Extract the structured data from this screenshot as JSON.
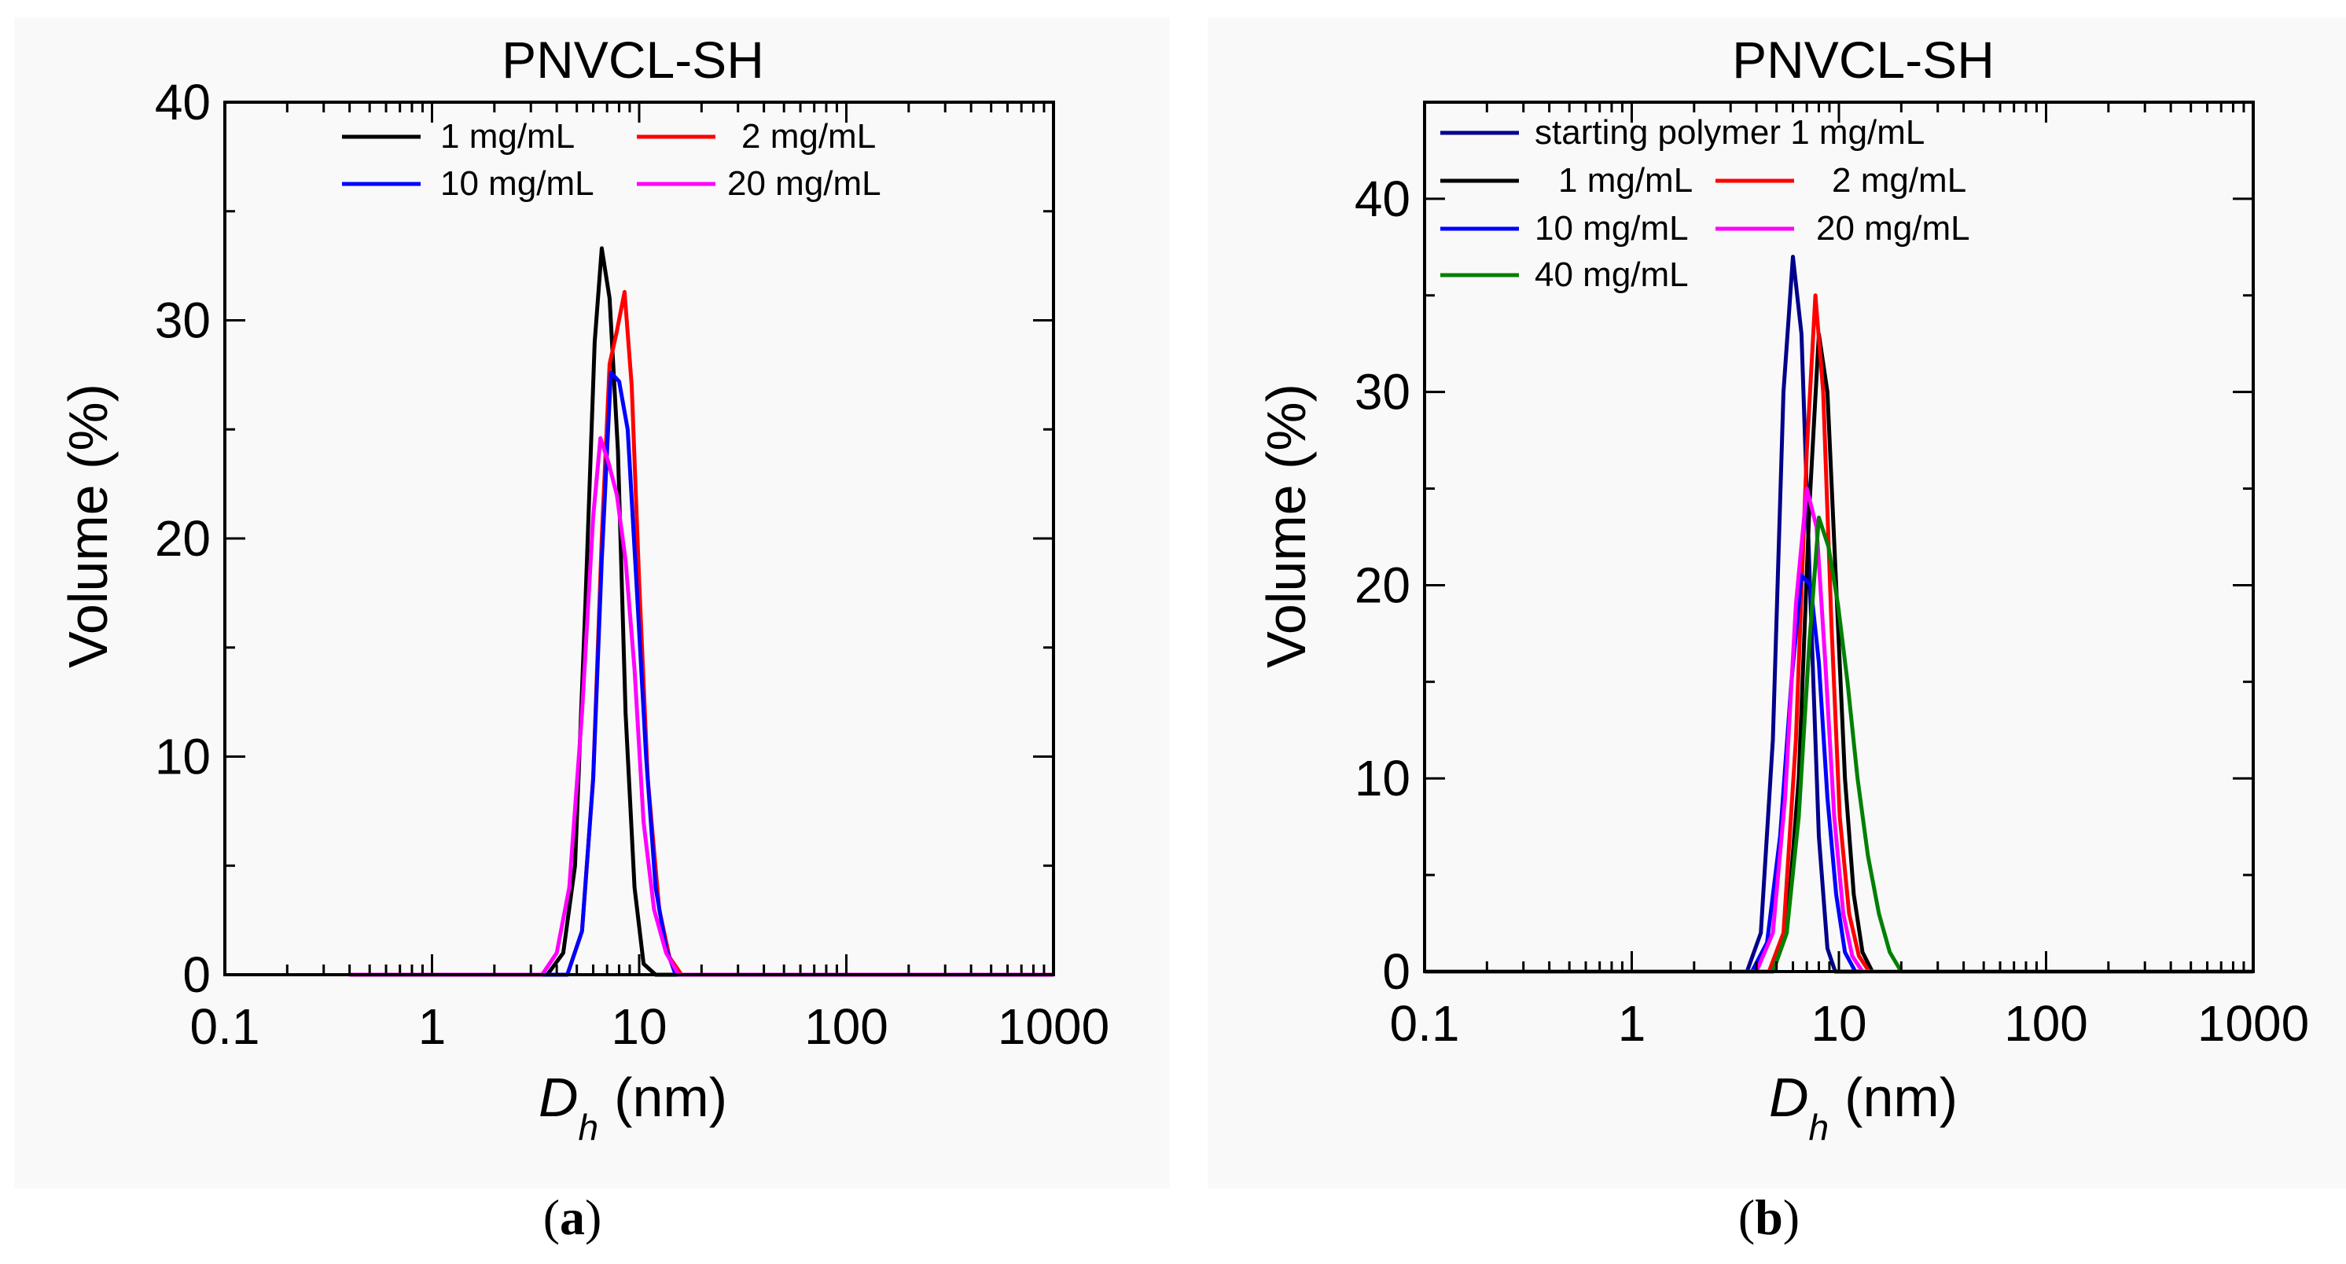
{
  "chart_data": [
    {
      "type": "line",
      "panel_label": "a",
      "title": "PNVCL-SH",
      "xlabel_main": "D",
      "xlabel_sub": "h",
      "xlabel_unit": "(nm)",
      "ylabel": "Volume (%)",
      "xscale": "log",
      "xlim": [
        0.1,
        1000
      ],
      "ylim": [
        0,
        40
      ],
      "xticks": [
        0.1,
        1,
        10,
        100,
        1000
      ],
      "xtick_labels": [
        "0.1",
        "1",
        "10",
        "100",
        "1000"
      ],
      "yticks": [
        0,
        10,
        20,
        30,
        40
      ],
      "ytick_labels": [
        "0",
        "10",
        "20",
        "30",
        "40"
      ],
      "legend_position": "top-center",
      "series": [
        {
          "name": "1 mg/mL",
          "color": "#000000",
          "x": [
            0.4,
            3.6,
            4.3,
            4.9,
            5.5,
            6.1,
            6.6,
            7.2,
            7.9,
            8.6,
            9.5,
            10.5,
            12,
            20,
            1000
          ],
          "y": [
            0,
            0,
            1,
            5,
            17,
            29,
            33.3,
            31,
            24,
            12,
            4,
            0.5,
            0,
            0,
            0
          ]
        },
        {
          "name": "2 mg/mL",
          "color": "#ff0000",
          "x": [
            0.4,
            4.5,
            5.3,
            6.0,
            6.6,
            7.2,
            7.8,
            8.5,
            9.2,
            10,
            11,
            12.5,
            14,
            16,
            1000
          ],
          "y": [
            0,
            0,
            2,
            9,
            20,
            28,
            29.5,
            31.3,
            27,
            18,
            9,
            3,
            0.8,
            0,
            0
          ]
        },
        {
          "name": "10 mg/mL",
          "color": "#0000ff",
          "x": [
            0.4,
            4.5,
            5.3,
            6.0,
            6.6,
            7.3,
            8.0,
            8.8,
            9.7,
            10.8,
            12,
            13.5,
            15,
            1000
          ],
          "y": [
            0,
            0,
            2,
            9,
            19,
            27.6,
            27.2,
            25,
            18,
            10,
            4,
            1.2,
            0,
            0
          ]
        },
        {
          "name": "20 mg/mL",
          "color": "#ff00ff",
          "x": [
            0.4,
            3.4,
            4.0,
            4.6,
            5.3,
            6.0,
            6.5,
            7.1,
            7.8,
            8.6,
            9.5,
            10.5,
            11.8,
            13.5,
            15.5,
            1000
          ],
          "y": [
            0,
            0,
            1,
            4,
            12,
            21,
            24.6,
            23.5,
            22,
            19,
            14,
            7,
            3,
            1,
            0,
            0
          ]
        }
      ]
    },
    {
      "type": "line",
      "panel_label": "b",
      "title": "PNVCL-SH",
      "xlabel_main": "D",
      "xlabel_sub": "h",
      "xlabel_unit": "(nm)",
      "ylabel": "Volume (%)",
      "xscale": "log",
      "xlim": [
        0.1,
        1000
      ],
      "ylim": [
        0,
        45
      ],
      "xticks": [
        0.1,
        1,
        10,
        100,
        1000
      ],
      "xtick_labels": [
        "0.1",
        "1",
        "10",
        "100",
        "1000"
      ],
      "yticks": [
        0,
        10,
        20,
        30,
        40
      ],
      "ytick_labels": [
        "0",
        "10",
        "20",
        "30",
        "40"
      ],
      "legend_position": "top-left",
      "series": [
        {
          "name": "starting polymer 1 mg/mL",
          "color": "#00008b",
          "x": [
            0.1,
            3.6,
            4.2,
            4.8,
            5.4,
            6.0,
            6.6,
            7.3,
            8.0,
            8.8,
            9.6,
            1000
          ],
          "y": [
            0,
            0,
            2,
            12,
            30,
            37,
            33,
            19,
            7,
            1.2,
            0,
            0
          ]
        },
        {
          "name": "1 mg/mL",
          "color": "#000000",
          "x": [
            0.1,
            4.8,
            5.6,
            6.4,
            7.2,
            8.0,
            8.8,
            9.7,
            10.7,
            11.8,
            13.0,
            14.5,
            1000
          ],
          "y": [
            0,
            0,
            2,
            10,
            24,
            33,
            30,
            20,
            10,
            4,
            1,
            0,
            0
          ]
        },
        {
          "name": "2 mg/mL",
          "color": "#ff0000",
          "x": [
            0.1,
            4.6,
            5.4,
            6.2,
            7.0,
            7.7,
            8.4,
            9.2,
            10.1,
            11.2,
            12.5,
            14.0,
            1000
          ],
          "y": [
            0,
            0,
            2,
            12,
            27,
            35,
            30,
            18,
            8,
            3,
            0.8,
            0,
            0
          ]
        },
        {
          "name": "10 mg/mL",
          "color": "#0000ff",
          "x": [
            0.1,
            3.8,
            4.5,
            5.2,
            5.9,
            6.6,
            7.3,
            8.0,
            8.8,
            9.7,
            10.7,
            12.0,
            1000
          ],
          "y": [
            0,
            0,
            1.5,
            7,
            15,
            20.5,
            20,
            16,
            9,
            4,
            1,
            0,
            0
          ]
        },
        {
          "name": "20 mg/mL",
          "color": "#ff00ff",
          "x": [
            0.1,
            4.0,
            4.8,
            5.5,
            6.2,
            7.0,
            7.8,
            8.6,
            9.5,
            10.5,
            11.6,
            13.0,
            1000
          ],
          "y": [
            0,
            0,
            2,
            9,
            19,
            25,
            23,
            16,
            8,
            3,
            0.8,
            0,
            0
          ]
        },
        {
          "name": "40 mg/mL",
          "color": "#008000",
          "x": [
            0.1,
            4.8,
            5.6,
            6.4,
            7.2,
            8.0,
            8.9,
            9.9,
            11.0,
            12.3,
            13.8,
            15.6,
            17.6,
            20.0,
            1000
          ],
          "y": [
            0,
            0,
            2,
            8,
            17,
            23.5,
            22,
            19,
            15,
            10,
            6,
            3,
            1,
            0,
            0
          ]
        }
      ]
    }
  ]
}
